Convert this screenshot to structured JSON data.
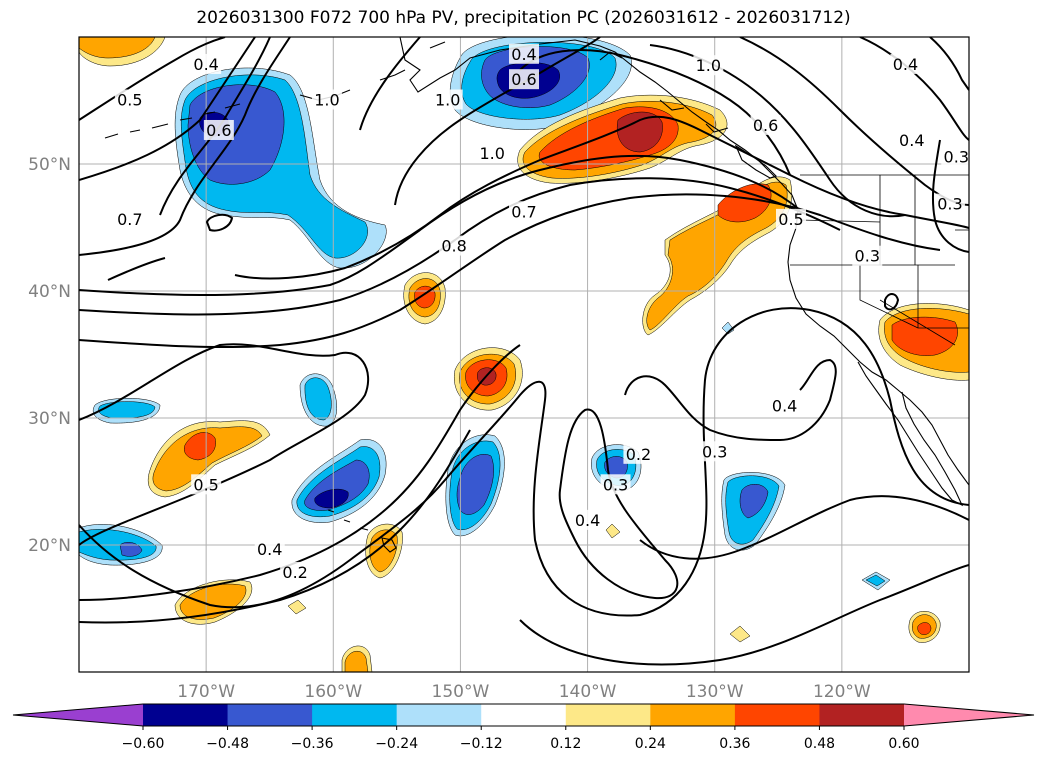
{
  "title": "2026031300 F072 700 hPa PV, precipitation PC (2026031612 - 2026031712)",
  "map": {
    "lon_range": [
      -180,
      -110
    ],
    "lat_range": [
      10,
      60
    ],
    "lat_ticks": [
      {
        "value": 50,
        "label": "50°N"
      },
      {
        "value": 40,
        "label": "40°N"
      },
      {
        "value": 30,
        "label": "30°N"
      },
      {
        "value": 20,
        "label": "20°N"
      }
    ],
    "lon_ticks": [
      {
        "value": -170,
        "label": "170°W"
      },
      {
        "value": -160,
        "label": "160°W"
      },
      {
        "value": -150,
        "label": "150°W"
      },
      {
        "value": -140,
        "label": "140°W"
      },
      {
        "value": -130,
        "label": "130°W"
      },
      {
        "value": -120,
        "label": "120°W"
      }
    ],
    "grid": true,
    "contour_labels": [
      {
        "text": "0.4",
        "lon": -170,
        "lat": 57.8
      },
      {
        "text": "0.5",
        "lon": -176,
        "lat": 55.0
      },
      {
        "text": "0.6",
        "lon": -169,
        "lat": 52.6
      },
      {
        "text": "1.0",
        "lon": -160.5,
        "lat": 55.0
      },
      {
        "text": "0.4",
        "lon": -145,
        "lat": 58.6
      },
      {
        "text": "0.6",
        "lon": -145,
        "lat": 56.6
      },
      {
        "text": "1.0",
        "lon": -151,
        "lat": 55.0
      },
      {
        "text": "1.0",
        "lon": -147.5,
        "lat": 50.8
      },
      {
        "text": "1.0",
        "lon": -130.5,
        "lat": 57.7
      },
      {
        "text": "0.6",
        "lon": -126,
        "lat": 53.0
      },
      {
        "text": "0.4",
        "lon": -115,
        "lat": 57.8
      },
      {
        "text": "0.4",
        "lon": -114.5,
        "lat": 51.8
      },
      {
        "text": "0.3",
        "lon": -111,
        "lat": 50.5
      },
      {
        "text": "0.3",
        "lon": -111.5,
        "lat": 46.8
      },
      {
        "text": "0.5",
        "lon": -124,
        "lat": 45.6
      },
      {
        "text": "0.3",
        "lon": -118,
        "lat": 42.7
      },
      {
        "text": "0.7",
        "lon": -176,
        "lat": 45.6
      },
      {
        "text": "0.7",
        "lon": -145,
        "lat": 46.2
      },
      {
        "text": "0.8",
        "lon": -150.5,
        "lat": 43.5
      },
      {
        "text": "0.2",
        "lon": -136,
        "lat": 27.1
      },
      {
        "text": "0.3",
        "lon": -130,
        "lat": 27.3
      },
      {
        "text": "0.3",
        "lon": -137.8,
        "lat": 24.7
      },
      {
        "text": "0.4",
        "lon": -124.5,
        "lat": 30.9
      },
      {
        "text": "0.4",
        "lon": -140,
        "lat": 21.9
      },
      {
        "text": "0.5",
        "lon": -170,
        "lat": 24.7
      },
      {
        "text": "0.4",
        "lon": -165,
        "lat": 19.6
      },
      {
        "text": "0.2",
        "lon": -163,
        "lat": 17.8
      }
    ]
  },
  "colorbar": {
    "boundaries": [
      -0.6,
      -0.48,
      -0.36,
      -0.24,
      -0.12,
      0.12,
      0.24,
      0.36,
      0.48,
      0.6
    ],
    "tick_labels": [
      "−0.60",
      "−0.48",
      "−0.36",
      "−0.24",
      "−0.12",
      "0.12",
      "0.24",
      "0.36",
      "0.48",
      "0.60"
    ],
    "colors": [
      "#9a3fd0",
      "#000090",
      "#3858d0",
      "#00b8f0",
      "#aee0fa",
      "#ffffff",
      "#fde888",
      "#ffa500",
      "#ff4500",
      "#b22222",
      "#ff8aae"
    ],
    "extend": "both"
  },
  "colors": {
    "land_outline": "#000000",
    "grid": "#b0b0b0",
    "contour": "#000000"
  }
}
